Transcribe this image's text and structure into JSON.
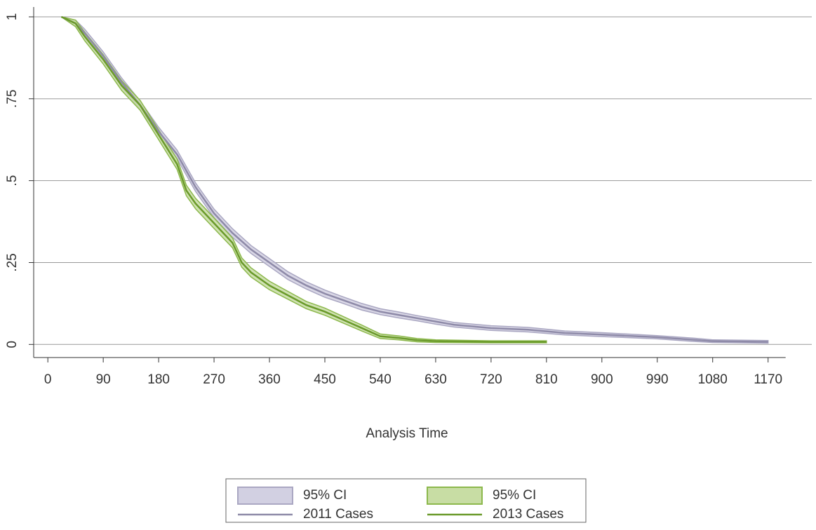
{
  "chart_data": {
    "type": "survival",
    "x_label": "Analysis Time",
    "xlim": [
      -23,
      1241
    ],
    "ylim": [
      -0.04,
      1.03
    ],
    "xticks": [
      0,
      90,
      180,
      270,
      360,
      450,
      540,
      630,
      720,
      810,
      900,
      990,
      1080,
      1170
    ],
    "yticks": [
      0,
      {
        "value": 0.25,
        "label": ".25"
      },
      {
        "value": 0.5,
        "label": ".5"
      },
      {
        "value": 0.75,
        "label": ".75"
      },
      1
    ],
    "grid": true,
    "series": [
      {
        "name": "2011 Cases",
        "ci_name": "95% CI",
        "color": "#8e8aa8",
        "ci_color": "#d2d0e2",
        "ci_edge": "#aaa7c2",
        "x": [
          22,
          45,
          60,
          90,
          120,
          150,
          180,
          210,
          225,
          240,
          270,
          300,
          330,
          360,
          390,
          420,
          450,
          480,
          510,
          540,
          570,
          600,
          630,
          660,
          720,
          780,
          840,
          900,
          990,
          1050,
          1080,
          1170
        ],
        "values": [
          1,
          0.98,
          0.95,
          0.88,
          0.8,
          0.73,
          0.65,
          0.58,
          0.53,
          0.48,
          0.4,
          0.34,
          0.29,
          0.25,
          0.21,
          0.18,
          0.155,
          0.135,
          0.115,
          0.1,
          0.09,
          0.08,
          0.07,
          0.06,
          0.05,
          0.045,
          0.035,
          0.03,
          0.022,
          0.014,
          0.01,
          0.008
        ],
        "ci_upper": [
          1,
          0.99,
          0.962,
          0.893,
          0.813,
          0.743,
          0.663,
          0.593,
          0.543,
          0.493,
          0.413,
          0.353,
          0.302,
          0.262,
          0.222,
          0.191,
          0.166,
          0.145,
          0.125,
          0.109,
          0.099,
          0.088,
          0.078,
          0.067,
          0.057,
          0.052,
          0.041,
          0.036,
          0.027,
          0.019,
          0.014,
          0.012
        ],
        "ci_lower": [
          1,
          0.97,
          0.938,
          0.867,
          0.787,
          0.717,
          0.637,
          0.567,
          0.517,
          0.467,
          0.387,
          0.327,
          0.278,
          0.238,
          0.198,
          0.169,
          0.144,
          0.125,
          0.105,
          0.091,
          0.081,
          0.072,
          0.062,
          0.053,
          0.043,
          0.038,
          0.029,
          0.024,
          0.017,
          0.009,
          0.006,
          0.004
        ]
      },
      {
        "name": "2013 Cases",
        "ci_name": "95% CI",
        "color": "#6a9a2a",
        "ci_color": "#c8dda4",
        "ci_edge": "#8cb84c",
        "x": [
          22,
          45,
          60,
          90,
          120,
          150,
          180,
          210,
          225,
          240,
          270,
          300,
          315,
          330,
          360,
          390,
          420,
          450,
          480,
          510,
          540,
          570,
          600,
          630,
          720,
          810
        ],
        "values": [
          1,
          0.98,
          0.94,
          0.87,
          0.79,
          0.73,
          0.64,
          0.55,
          0.47,
          0.43,
          0.37,
          0.31,
          0.25,
          0.22,
          0.18,
          0.15,
          0.12,
          0.1,
          0.075,
          0.05,
          0.025,
          0.02,
          0.013,
          0.01,
          0.008,
          0.008
        ],
        "ci_upper": [
          1,
          0.99,
          0.953,
          0.884,
          0.805,
          0.745,
          0.655,
          0.566,
          0.486,
          0.446,
          0.386,
          0.325,
          0.264,
          0.234,
          0.193,
          0.162,
          0.131,
          0.111,
          0.085,
          0.059,
          0.032,
          0.026,
          0.018,
          0.014,
          0.011,
          0.011
        ],
        "ci_lower": [
          1,
          0.97,
          0.927,
          0.856,
          0.775,
          0.715,
          0.625,
          0.534,
          0.454,
          0.414,
          0.354,
          0.295,
          0.236,
          0.206,
          0.167,
          0.138,
          0.109,
          0.089,
          0.065,
          0.041,
          0.018,
          0.014,
          0.008,
          0.006,
          0.005,
          0.005
        ]
      }
    ]
  }
}
